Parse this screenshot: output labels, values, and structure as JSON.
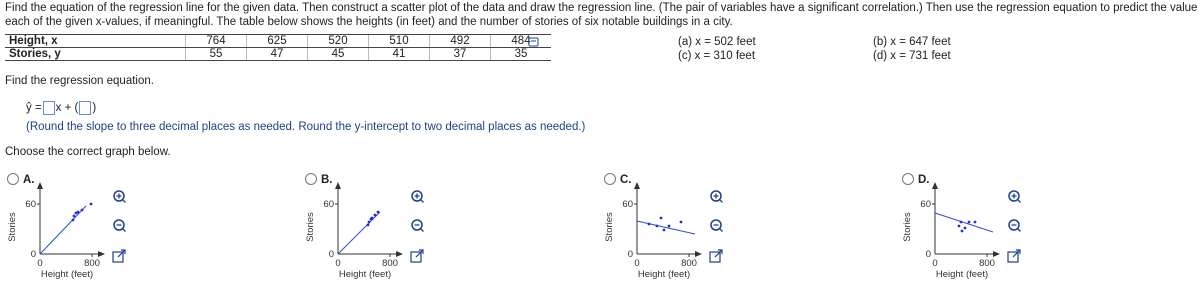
{
  "question": {
    "line1": "Find the equation of the regression line for the given data. Then construct a scatter plot of the data and draw the regression line. (The pair of variables have a significant correlation.) Then use the regression equation to predict the value of y for",
    "line2": "each of the given x-values, if meaningful. The table below shows the heights (in feet) and the number of stories of six notable buildings in a city."
  },
  "table": {
    "rows": [
      [
        "Height, x",
        764,
        625,
        520,
        510,
        492,
        484
      ],
      [
        "Stories, y",
        55,
        47,
        45,
        41,
        37,
        35
      ]
    ]
  },
  "parts": [
    "(a) x = 502 feet",
    "(b) x = 647 feet",
    "(c) x = 310 feet",
    "(d) x = 731 feet"
  ],
  "prompt": "Find the regression equation.",
  "equation": {
    "lhs": "ŷ =",
    "mid": "x +"
  },
  "hint": "(Round the slope to three decimal places as needed. Round the y-intercept to two decimal places as needed.)",
  "choose": "Choose the correct graph below.",
  "options": [
    {
      "label": "A.",
      "y_label": "Stories",
      "x_label": "Height (feet)",
      "ytick_top": "60",
      "ytick_bottom": "0",
      "xtick_left": "0",
      "xtick_right": "800"
    },
    {
      "label": "B.",
      "y_label": "Stories",
      "x_label": "Height (feet)",
      "ytick_top": "60",
      "ytick_bottom": "0",
      "xtick_left": "0",
      "xtick_right": "800"
    },
    {
      "label": "C.",
      "y_label": "Stories",
      "x_label": "Height (feet)",
      "ytick_top": "60",
      "ytick_bottom": "0",
      "xtick_left": "0",
      "xtick_right": "800"
    },
    {
      "label": "D.",
      "y_label": "Stories",
      "x_label": "Height (feet)",
      "ytick_top": "60",
      "ytick_bottom": "0",
      "xtick_left": "0",
      "xtick_right": "800"
    }
  ]
}
